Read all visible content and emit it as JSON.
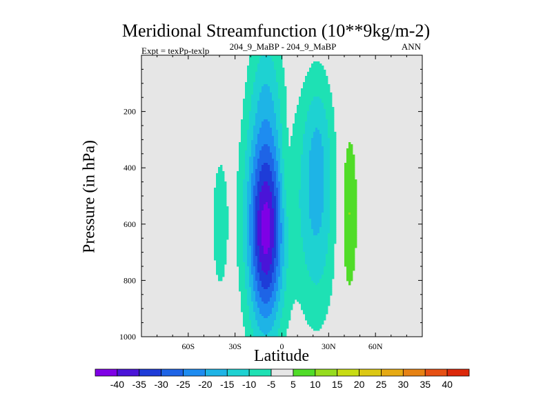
{
  "chart_data": {
    "type": "contour",
    "title": "Meridional Streamfunction (10**9kg/m-2)",
    "subtitle_left": "Expt = texPp-texlp",
    "subtitle_center": "204_9_MaBP - 204_9_MaBP",
    "subtitle_right": "ANN",
    "xlabel": "Latitude",
    "ylabel": "Pressure (in hPa)",
    "xlim": [
      -90,
      90
    ],
    "ylim": [
      1000,
      0
    ],
    "x_ticks": [
      {
        "value": -60,
        "label": "60S"
      },
      {
        "value": -30,
        "label": "30S"
      },
      {
        "value": 0,
        "label": "0"
      },
      {
        "value": 30,
        "label": "30N"
      },
      {
        "value": 60,
        "label": "60N"
      }
    ],
    "y_ticks": [
      {
        "value": 200,
        "label": "200"
      },
      {
        "value": 400,
        "label": "400"
      },
      {
        "value": 600,
        "label": "600"
      },
      {
        "value": 800,
        "label": "800"
      },
      {
        "value": 1000,
        "label": "1000"
      }
    ],
    "levels": [
      "-40",
      "-35",
      "-30",
      "-25",
      "-20",
      "-15",
      "-10",
      "-5",
      "5",
      "10",
      "15",
      "20",
      "25",
      "30",
      "35",
      "40"
    ],
    "colorbar_colors": [
      "#7f00e6",
      "#4a14d8",
      "#1e3cd8",
      "#1e64e6",
      "#1e8cf0",
      "#1eb4e6",
      "#1ed2d2",
      "#1ee1b4",
      "#e6e6e6",
      "#50dc28",
      "#96dc1e",
      "#c8dc14",
      "#dcc814",
      "#e6aa14",
      "#e68214",
      "#e65014",
      "#dc280a"
    ],
    "cells": [
      {
        "lat": -40,
        "p": 600,
        "sx": 5,
        "sy": 260,
        "value": -6.5
      },
      {
        "lat": -10,
        "p": 80,
        "sx": 7,
        "sy": 150,
        "value": -6
      },
      {
        "lat": -11,
        "p": 560,
        "sx": 10,
        "sy": 330,
        "value": -21
      },
      {
        "lat": -10,
        "p": 640,
        "sx": 7,
        "sy": 220,
        "value": -22
      },
      {
        "lat": 22,
        "p": 520,
        "sx": 9,
        "sy": 300,
        "value": -16
      },
      {
        "lat": 23,
        "p": 280,
        "sx": 6,
        "sy": 150,
        "value": -4
      },
      {
        "lat": 3,
        "p": 420,
        "sx": 3,
        "sy": 160,
        "value": 4
      },
      {
        "lat": 43,
        "p": 560,
        "sx": 4,
        "sy": 220,
        "value": 11
      }
    ]
  }
}
